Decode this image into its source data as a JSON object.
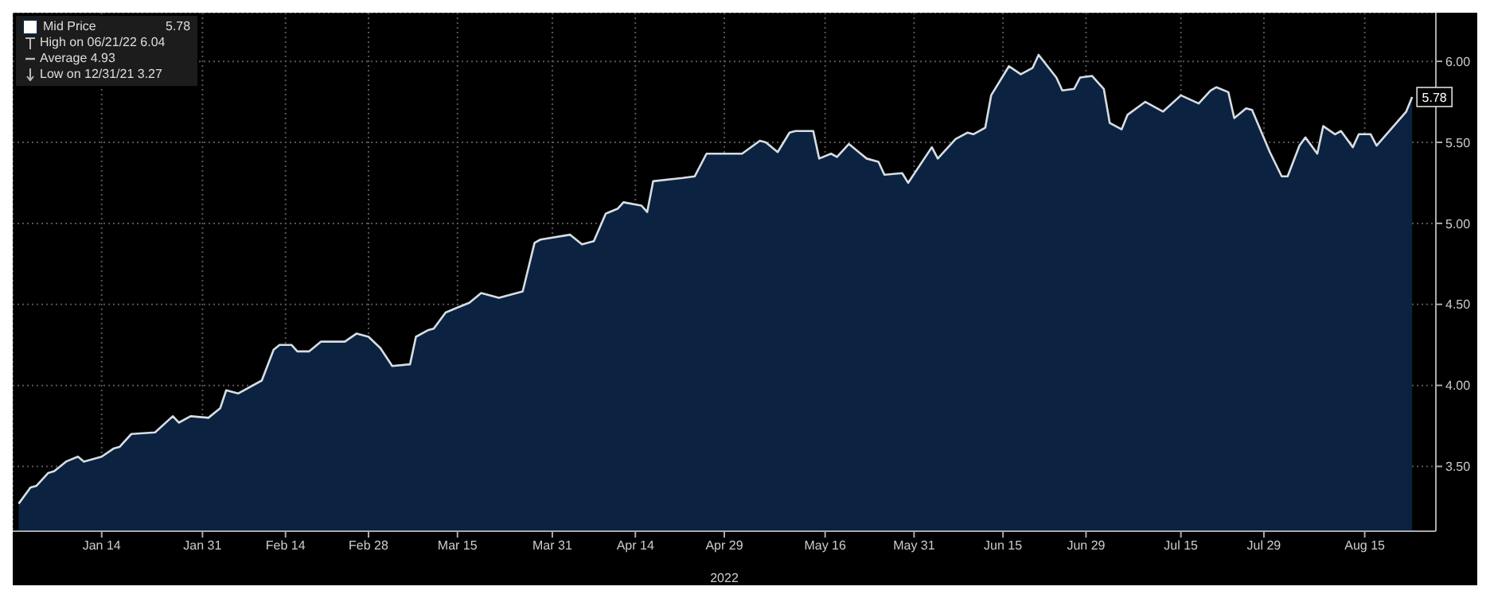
{
  "chart_data": {
    "type": "area",
    "xlabel": "2022",
    "x": [
      "2021-12-31",
      "2022-01-02",
      "2022-01-03",
      "2022-01-05",
      "2022-01-06",
      "2022-01-08",
      "2022-01-10",
      "2022-01-11",
      "2022-01-14",
      "2022-01-16",
      "2022-01-17",
      "2022-01-19",
      "2022-01-23",
      "2022-01-26",
      "2022-01-27",
      "2022-01-29",
      "2022-02-01",
      "2022-02-03",
      "2022-02-04",
      "2022-02-06",
      "2022-02-10",
      "2022-02-12",
      "2022-02-13",
      "2022-02-15",
      "2022-02-16",
      "2022-02-18",
      "2022-02-20",
      "2022-02-24",
      "2022-02-26",
      "2022-02-28",
      "2022-03-02",
      "2022-03-04",
      "2022-03-07",
      "2022-03-08",
      "2022-03-10",
      "2022-03-11",
      "2022-03-13",
      "2022-03-15",
      "2022-03-17",
      "2022-03-19",
      "2022-03-22",
      "2022-03-26",
      "2022-03-28",
      "2022-03-29",
      "2022-04-03",
      "2022-04-05",
      "2022-04-07",
      "2022-04-09",
      "2022-04-11",
      "2022-04-12",
      "2022-04-15",
      "2022-04-16",
      "2022-04-17",
      "2022-04-22",
      "2022-04-24",
      "2022-04-26",
      "2022-04-28",
      "2022-05-02",
      "2022-05-05",
      "2022-05-06",
      "2022-05-08",
      "2022-05-10",
      "2022-05-11",
      "2022-05-14",
      "2022-05-15",
      "2022-05-17",
      "2022-05-18",
      "2022-05-20",
      "2022-05-22",
      "2022-05-23",
      "2022-05-25",
      "2022-05-26",
      "2022-05-29",
      "2022-05-30",
      "2022-06-03",
      "2022-06-04",
      "2022-06-07",
      "2022-06-09",
      "2022-06-10",
      "2022-06-12",
      "2022-06-13",
      "2022-06-16",
      "2022-06-18",
      "2022-06-20",
      "2022-06-21",
      "2022-06-24",
      "2022-06-25",
      "2022-06-27",
      "2022-06-28",
      "2022-06-30",
      "2022-07-02",
      "2022-07-03",
      "2022-07-05",
      "2022-07-06",
      "2022-07-09",
      "2022-07-12",
      "2022-07-15",
      "2022-07-18",
      "2022-07-20",
      "2022-07-21",
      "2022-07-23",
      "2022-07-24",
      "2022-07-26",
      "2022-07-27",
      "2022-07-30",
      "2022-08-01",
      "2022-08-02",
      "2022-08-04",
      "2022-08-05",
      "2022-08-07",
      "2022-08-08",
      "2022-08-10",
      "2022-08-11",
      "2022-08-13",
      "2022-08-14",
      "2022-08-16",
      "2022-08-17",
      "2022-08-22",
      "2022-08-23"
    ],
    "series": [
      {
        "name": "Mid Price",
        "color": "#0b2340",
        "values": [
          3.27,
          3.37,
          3.38,
          3.46,
          3.47,
          3.53,
          3.56,
          3.53,
          3.56,
          3.61,
          3.62,
          3.7,
          3.71,
          3.81,
          3.77,
          3.81,
          3.8,
          3.86,
          3.97,
          3.95,
          4.03,
          4.22,
          4.25,
          4.25,
          4.21,
          4.21,
          4.27,
          4.27,
          4.32,
          4.3,
          4.23,
          4.12,
          4.13,
          4.3,
          4.34,
          4.35,
          4.45,
          4.48,
          4.51,
          4.57,
          4.54,
          4.58,
          4.88,
          4.9,
          4.93,
          4.87,
          4.89,
          5.06,
          5.09,
          5.13,
          5.11,
          5.07,
          5.26,
          5.28,
          5.29,
          5.43,
          5.43,
          5.43,
          5.51,
          5.5,
          5.44,
          5.56,
          5.57,
          5.57,
          5.4,
          5.43,
          5.41,
          5.49,
          5.43,
          5.4,
          5.38,
          5.3,
          5.31,
          5.25,
          5.47,
          5.4,
          5.52,
          5.56,
          5.55,
          5.59,
          5.79,
          5.97,
          5.92,
          5.96,
          6.04,
          5.9,
          5.82,
          5.83,
          5.9,
          5.91,
          5.83,
          5.62,
          5.58,
          5.67,
          5.75,
          5.69,
          5.79,
          5.74,
          5.82,
          5.84,
          5.81,
          5.65,
          5.71,
          5.7,
          5.44,
          5.29,
          5.29,
          5.48,
          5.53,
          5.43,
          5.6,
          5.55,
          5.57,
          5.47,
          5.55,
          5.55,
          5.48,
          5.69,
          5.78
        ],
        "value_labels": [
          null,
          null,
          null,
          null,
          null,
          null,
          null,
          null,
          null,
          null,
          null,
          null,
          null,
          null,
          null,
          null,
          null,
          null,
          null,
          null,
          null,
          null,
          null,
          null,
          null,
          null,
          null,
          null,
          null,
          null,
          null,
          null,
          null,
          null,
          null,
          null,
          null,
          null,
          null,
          null,
          null,
          null,
          null,
          null,
          null,
          null,
          null,
          null,
          null,
          null,
          null,
          null,
          null,
          null,
          null,
          null,
          null,
          null,
          null,
          null,
          null,
          null,
          null,
          null,
          null,
          null,
          null,
          null,
          null,
          null,
          null,
          null,
          null,
          null,
          null,
          null,
          null,
          null,
          null,
          null,
          null,
          null,
          null,
          null,
          null,
          null,
          null,
          null,
          null,
          null,
          null,
          null,
          null,
          null,
          null,
          null,
          null,
          null,
          null,
          null,
          null,
          null,
          null,
          null,
          null,
          null,
          null,
          null,
          null,
          null,
          null,
          null,
          null,
          null,
          null,
          null,
          null,
          null,
          "5.78"
        ]
      }
    ],
    "annotations": [
      "High on 06/21/22 6.04",
      "Average 4.93",
      "Low on 12/31/21 3.27"
    ],
    "xlim": [
      "2021-12-30",
      "2022-08-27"
    ],
    "xticks": [
      {
        "value": "2022-01-14",
        "label": "Jan 14"
      },
      {
        "value": "2022-01-31",
        "label": "Jan 31"
      },
      {
        "value": "2022-02-14",
        "label": "Feb 14"
      },
      {
        "value": "2022-02-28",
        "label": "Feb 28"
      },
      {
        "value": "2022-03-15",
        "label": "Mar 15"
      },
      {
        "value": "2022-03-31",
        "label": "Mar 31"
      },
      {
        "value": "2022-04-14",
        "label": "Apr 14"
      },
      {
        "value": "2022-04-29",
        "label": "Apr 29"
      },
      {
        "value": "2022-05-16",
        "label": "May 16"
      },
      {
        "value": "2022-05-31",
        "label": "May 31"
      },
      {
        "value": "2022-06-15",
        "label": "Jun 15"
      },
      {
        "value": "2022-06-29",
        "label": "Jun 29"
      },
      {
        "value": "2022-07-15",
        "label": "Jul 15"
      },
      {
        "value": "2022-07-29",
        "label": "Jul 29"
      },
      {
        "value": "2022-08-15",
        "label": "Aug 15"
      }
    ],
    "ylim": [
      3.1,
      6.3
    ],
    "yticks": [
      {
        "value": 3.5,
        "label": "3.50"
      },
      {
        "value": 4,
        "label": "4.00"
      },
      {
        "value": 4.5,
        "label": "4.50"
      },
      {
        "value": 5,
        "label": "5.00"
      },
      {
        "value": 5.5,
        "label": "5.50"
      },
      {
        "value": 6,
        "label": "6.00"
      }
    ],
    "grid": true,
    "legend": "top left"
  }
}
